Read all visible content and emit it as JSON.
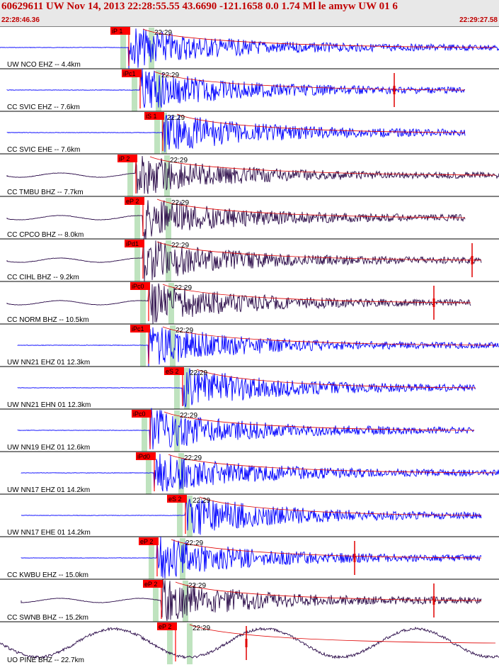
{
  "header": {
    "title": "60629611 UW Nov 14, 2013 22:28:55.55    43.6690 -121.1658  0.0 1.74 Ml le amyw UW 01    6",
    "start_time": "22:28:46.36",
    "end_time": "22:29:27.58"
  },
  "colors": {
    "pick": "#ff0000",
    "trace_short": "#0000ff",
    "trace_broad": "#2a0a48",
    "window": "#bfe3bf"
  },
  "traces": [
    {
      "label": "UW NCO EHZ -- 4.4km",
      "pick": "iP 1",
      "time": "22:29",
      "color": "blue"
    },
    {
      "label": "CC SVIC EHZ -- 7.6km",
      "pick": "iPc1",
      "time": "22:29",
      "color": "blue"
    },
    {
      "label": "CC SVIC EHE -- 7.6km",
      "pick": "iS 1",
      "time": "22:29",
      "color": "blue"
    },
    {
      "label": "CC TMBU BHZ -- 7.7km",
      "pick": "iP 2",
      "time": "22:29",
      "color": "dark"
    },
    {
      "label": "CC CPCO BHZ -- 8.0km",
      "pick": "eP 2",
      "time": "22:29",
      "color": "dark"
    },
    {
      "label": "CC CIHL BHZ -- 9.2km",
      "pick": "iPd1",
      "time": "22:29",
      "color": "dark"
    },
    {
      "label": "CC NORM BHZ -- 10.5km",
      "pick": "iPc0",
      "time": "22:29",
      "color": "dark"
    },
    {
      "label": "UW NN21 EHZ 01 12.3km",
      "pick": "iPc1",
      "time": "22:29",
      "color": "blue"
    },
    {
      "label": "UW NN21 EHN 01 12.3km",
      "pick": "eS 2",
      "time": "22:29",
      "color": "blue"
    },
    {
      "label": "UW NN19 EHZ 01 12.6km",
      "pick": "iPc0",
      "time": "22:29",
      "color": "blue"
    },
    {
      "label": "UW NN17 EHZ 01 14.2km",
      "pick": "iPd0",
      "time": "22:29",
      "color": "blue"
    },
    {
      "label": "UW NN17 EHE 01 14.2km",
      "pick": "eS 2",
      "time": "22:29",
      "color": "blue"
    },
    {
      "label": "CC KWBU EHZ -- 15.0km",
      "pick": "eP 2",
      "time": "22:29",
      "color": "blue"
    },
    {
      "label": "CC SWNB BHZ -- 15.2km",
      "pick": "eP 2",
      "time": "22:29",
      "color": "dark"
    },
    {
      "label": "UO PINE BHZ -- 22.7km",
      "pick": "eP 2",
      "time": "22:29",
      "color": "dark"
    }
  ]
}
